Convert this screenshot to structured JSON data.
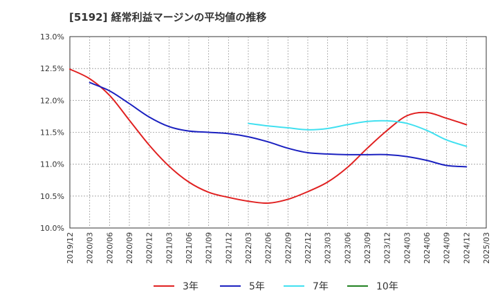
{
  "chart_data": {
    "type": "line",
    "title": "[5192]  経常利益マージンの平均値の推移",
    "xlabel": "",
    "ylabel": "",
    "x_tick_labels": [
      "2019/12",
      "2020/03",
      "2020/06",
      "2020/09",
      "2020/12",
      "2021/03",
      "2021/06",
      "2021/09",
      "2021/12",
      "2022/03",
      "2022/06",
      "2022/09",
      "2022/12",
      "2023/03",
      "2023/06",
      "2023/09",
      "2023/12",
      "2024/03",
      "2024/06",
      "2024/09",
      "2024/12",
      "2025/03"
    ],
    "y_ticks": [
      "10.0%",
      "10.5%",
      "11.0%",
      "11.5%",
      "12.0%",
      "12.5%",
      "13.0%"
    ],
    "ylim": [
      10.0,
      13.0
    ],
    "grid": true,
    "legend_position": "bottom",
    "series": [
      {
        "name": "3年",
        "color": "#e02020",
        "x": [
          "2019/12",
          "2020/03",
          "2020/06",
          "2020/09",
          "2020/12",
          "2021/03",
          "2021/06",
          "2021/09",
          "2021/12",
          "2022/03",
          "2022/06",
          "2022/09",
          "2022/12",
          "2023/03",
          "2023/06",
          "2023/09",
          "2023/12",
          "2024/03",
          "2024/06",
          "2024/09",
          "2024/12"
        ],
        "values": [
          12.49,
          12.34,
          12.08,
          11.69,
          11.3,
          10.97,
          10.72,
          10.56,
          10.48,
          10.42,
          10.39,
          10.45,
          10.57,
          10.72,
          10.95,
          11.25,
          11.53,
          11.76,
          11.81,
          11.72,
          11.62
        ]
      },
      {
        "name": "5年",
        "color": "#1a20c0",
        "x": [
          "2020/03",
          "2020/06",
          "2020/09",
          "2020/12",
          "2021/03",
          "2021/06",
          "2021/09",
          "2021/12",
          "2022/03",
          "2022/06",
          "2022/09",
          "2022/12",
          "2023/03",
          "2023/06",
          "2023/09",
          "2023/12",
          "2024/03",
          "2024/06",
          "2024/09",
          "2024/12"
        ],
        "values": [
          12.28,
          12.15,
          11.95,
          11.74,
          11.59,
          11.52,
          11.5,
          11.48,
          11.43,
          11.35,
          11.25,
          11.18,
          11.16,
          11.15,
          11.15,
          11.15,
          11.12,
          11.06,
          10.98,
          10.96
        ]
      },
      {
        "name": "7年",
        "color": "#40e0f0",
        "x": [
          "2022/03",
          "2022/06",
          "2022/09",
          "2022/12",
          "2023/03",
          "2023/06",
          "2023/09",
          "2023/12",
          "2024/03",
          "2024/06",
          "2024/09",
          "2024/12"
        ],
        "values": [
          11.64,
          11.6,
          11.57,
          11.54,
          11.56,
          11.62,
          11.67,
          11.68,
          11.64,
          11.53,
          11.38,
          11.28
        ]
      },
      {
        "name": "10年",
        "color": "#208020",
        "x": [],
        "values": []
      }
    ]
  }
}
